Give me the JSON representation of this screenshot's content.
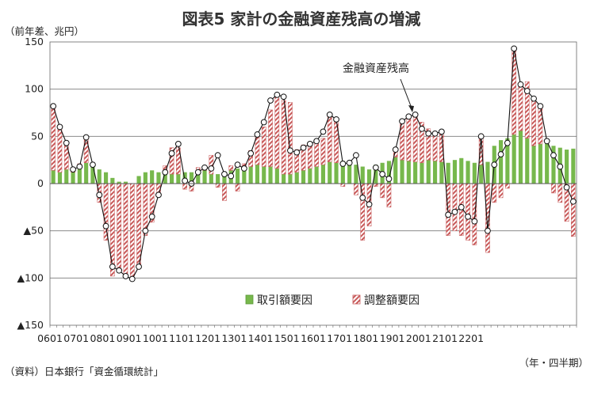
{
  "chart_data": {
    "type": "bar",
    "title": "図表5 家計の金融資産残高の増減",
    "unit_label": "（前年差、兆円）",
    "source": "（資料）日本銀行「資金循環統計」",
    "period_note": "（年・四半期）",
    "annotation": "金融資産残高",
    "ylim": [
      -150,
      150
    ],
    "y_ticks": [
      150,
      100,
      50,
      0,
      -50,
      -100,
      -150
    ],
    "y_tick_labels": [
      "150",
      "100",
      "50",
      "0",
      "▲50",
      "▲100",
      "▲150"
    ],
    "x_tick_labels": [
      "0601",
      "0701",
      "0801",
      "0901",
      "1001",
      "1101",
      "1201",
      "1301",
      "1401",
      "1501",
      "1601",
      "1701",
      "1801",
      "1901",
      "2001",
      "2101",
      "2201"
    ],
    "series": [
      {
        "name": "取引額要因",
        "kind": "bar",
        "color": "#77b84c",
        "values": [
          14,
          12,
          15,
          12,
          16,
          22,
          20,
          15,
          12,
          6,
          2,
          2,
          0,
          8,
          12,
          14,
          12,
          13,
          10,
          10,
          12,
          12,
          13,
          14,
          10,
          10,
          12,
          14,
          16,
          18,
          18,
          20,
          18,
          18,
          16,
          10,
          10,
          12,
          14,
          16,
          18,
          20,
          23,
          22,
          24,
          22,
          20,
          18,
          15,
          20,
          22,
          24,
          28,
          25,
          24,
          23,
          22,
          25,
          24,
          23,
          22,
          25,
          27,
          24,
          22,
          20,
          23,
          40,
          46,
          48,
          52,
          56,
          48,
          40,
          42,
          45,
          40,
          38,
          36,
          37
        ]
      },
      {
        "name": "調整額要因",
        "kind": "bar-hatched",
        "color": "#c85a5a",
        "values": [
          68,
          48,
          27,
          5,
          5,
          27,
          2,
          -20,
          -60,
          -98,
          -94,
          -96,
          -98,
          -90,
          -55,
          -41,
          -12,
          6,
          28,
          28,
          -6,
          -8,
          4,
          2,
          20,
          -4,
          -18,
          5,
          -8,
          3,
          17,
          32,
          42,
          60,
          76,
          78,
          76,
          24,
          27,
          28,
          27,
          28,
          50,
          48,
          -3,
          0,
          -12,
          -60,
          -45,
          -3,
          -15,
          -25,
          10,
          40,
          47,
          50,
          43,
          33,
          27,
          30,
          -55,
          -50,
          -55,
          -60,
          -65,
          31,
          -73,
          -20,
          -15,
          -5,
          90,
          50,
          60,
          50,
          40,
          0,
          -10,
          -20,
          -40,
          -56
        ]
      },
      {
        "name": "金融資産残高",
        "kind": "line",
        "values": [
          82,
          60,
          43,
          15,
          18,
          49,
          20,
          -12,
          -45,
          -88,
          -92,
          -98,
          -101,
          -88,
          -50,
          -35,
          -12,
          12,
          32,
          42,
          3,
          0,
          12,
          17,
          16,
          30,
          10,
          8,
          20,
          16,
          32,
          52,
          65,
          88,
          94,
          92,
          35,
          33,
          38,
          42,
          45,
          55,
          73,
          68,
          21,
          22,
          30,
          -15,
          -22,
          17,
          10,
          5,
          36,
          66,
          71,
          73,
          58,
          53,
          53,
          55,
          -33,
          -30,
          -25,
          -35,
          -40,
          50,
          -50,
          20,
          31,
          43,
          143,
          105,
          98,
          90,
          82,
          45,
          30,
          18,
          -4,
          -19
        ]
      }
    ],
    "legend": [
      "取引額要因",
      "調整額要因"
    ],
    "legend_position": "bottom-right inside plot",
    "grid": "horizontal"
  }
}
